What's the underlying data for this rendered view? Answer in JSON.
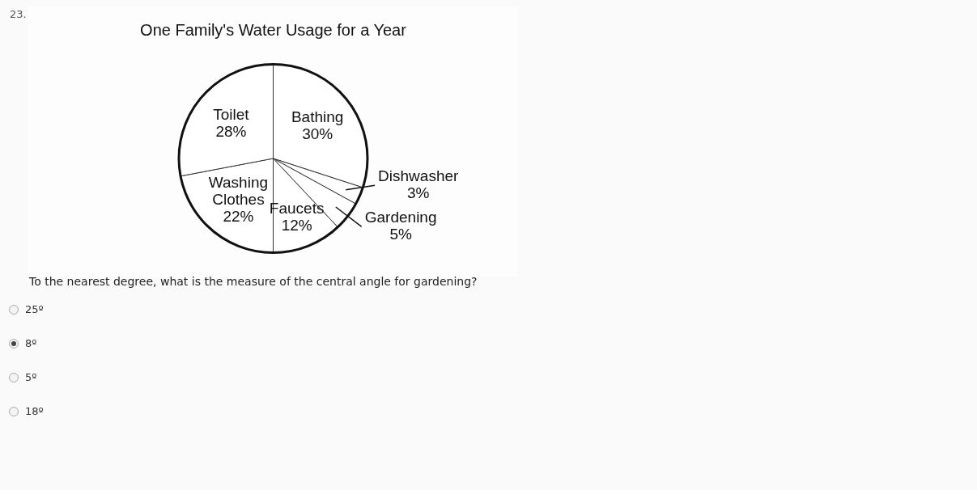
{
  "chart_data": {
    "type": "pie",
    "title": "One Family's Water Usage for a Year",
    "categories": [
      "Bathing",
      "Dishwasher",
      "Gardening",
      "Faucets",
      "Washing Clothes",
      "Toilet"
    ],
    "values": [
      30,
      3,
      5,
      12,
      22,
      28
    ],
    "value_labels": [
      "30%",
      "3%",
      "5%",
      "12%",
      "22%",
      "28%"
    ],
    "colors": [
      "#ffffff",
      "#ffffff",
      "#ffffff",
      "#ffffff",
      "#ffffff",
      "#ffffff"
    ],
    "legend": false,
    "annotations": [
      "23.",
      "To the nearest degree, what is the measure of the central angle for gardening?",
      "25º",
      "8º",
      "5º",
      "18º"
    ]
  }
}
